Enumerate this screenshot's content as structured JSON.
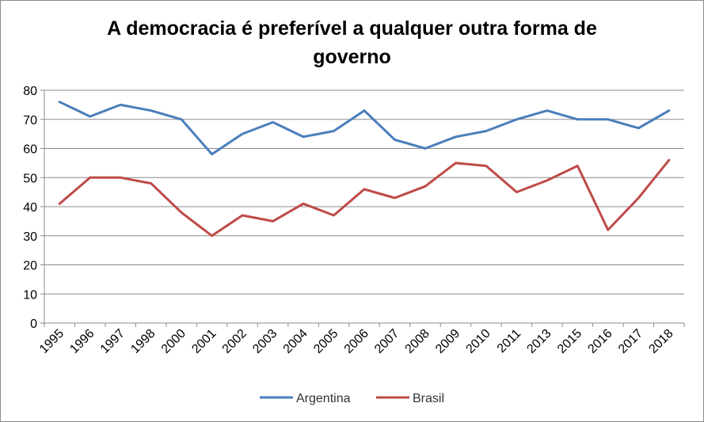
{
  "chart_data": {
    "type": "line",
    "title": "A democracia é preferível a qualquer outra forma de governo",
    "xlabel": "",
    "ylabel": "",
    "ylim": [
      0,
      80
    ],
    "yticks": [
      "0",
      "10",
      "20",
      "30",
      "40",
      "50",
      "60",
      "70",
      "80"
    ],
    "grid": true,
    "legend": "bottom",
    "categories": [
      "1995",
      "1996",
      "1997",
      "1998",
      "2000",
      "2001",
      "2002",
      "2003",
      "2004",
      "2005",
      "2006",
      "2007",
      "2008",
      "2009",
      "2010",
      "2011",
      "2013",
      "2015",
      "2016",
      "2017",
      "2018"
    ],
    "series": [
      {
        "name": "Argentina",
        "color": "#4a7ebb",
        "values": [
          76,
          71,
          75,
          73,
          70,
          58,
          65,
          69,
          64,
          66,
          73,
          63,
          60,
          64,
          66,
          70,
          73,
          70,
          70,
          67,
          73
        ]
      },
      {
        "name": "Brasil",
        "color": "#be4b48",
        "values": [
          41,
          50,
          50,
          48,
          38,
          30,
          37,
          35,
          41,
          37,
          46,
          43,
          47,
          55,
          54,
          45,
          49,
          54,
          32,
          43,
          56
        ]
      }
    ]
  }
}
